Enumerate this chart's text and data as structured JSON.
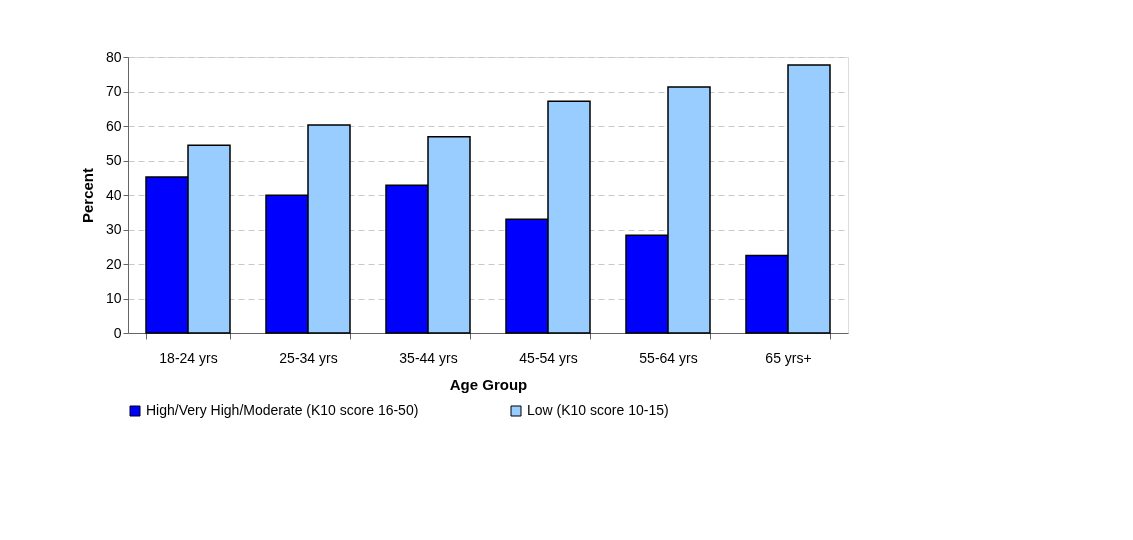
{
  "chart_data": {
    "type": "bar",
    "xlabel": "Age Group",
    "ylabel": "Percent",
    "categories": [
      "18-24 yrs",
      "25-34 yrs",
      "35-44 yrs",
      "45-54 yrs",
      "55-64 yrs",
      "65 yrs+"
    ],
    "series": [
      {
        "name": "High/Very High/Moderate (K10 score 16-50)",
        "color": "#0000ff",
        "values": [
          45.2,
          39.9,
          42.8,
          33.0,
          28.3,
          22.5
        ]
      },
      {
        "name": "Low  (K10 score 10-15)",
        "color": "#99ccff",
        "values": [
          54.4,
          60.3,
          56.9,
          67.2,
          71.3,
          77.7
        ]
      }
    ],
    "ylim": [
      0,
      80
    ],
    "yticks": [
      0,
      10,
      20,
      30,
      40,
      50,
      60,
      70,
      80
    ],
    "grid": "y",
    "legend": "bottom"
  }
}
